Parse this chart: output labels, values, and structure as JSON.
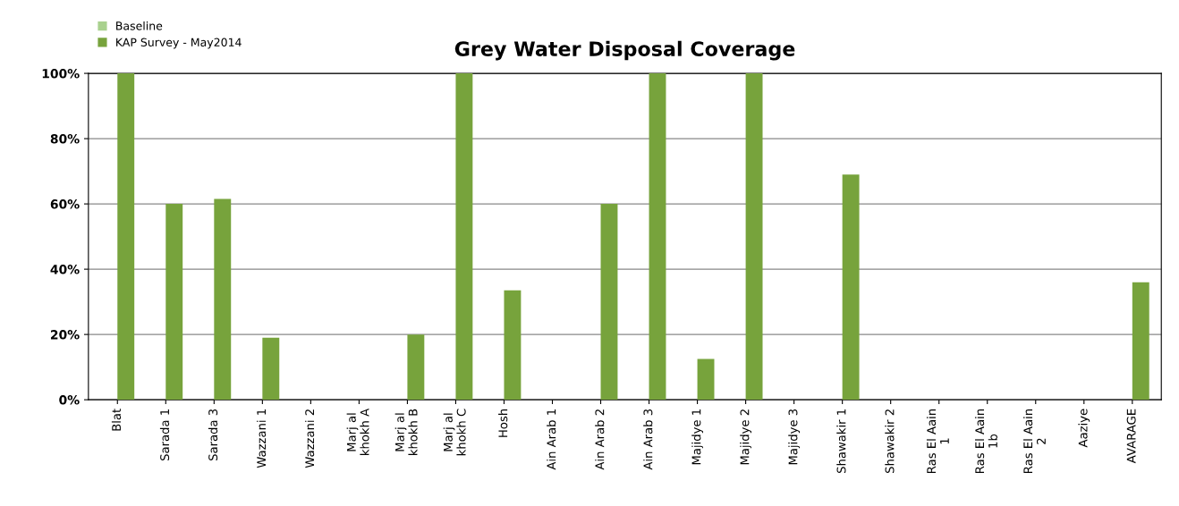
{
  "chart_data": {
    "type": "bar",
    "title": "Grey Water Disposal Coverage",
    "categories": [
      "Blat",
      "Sarada 1",
      "Sarada 3",
      "Wazzani 1",
      "Wazzani 2",
      "Marj al\nkhokh A",
      "Marj al\nkhokh B",
      "Marj al\nkhokh C",
      "Hosh",
      "Ain Arab 1",
      "Ain Arab 2",
      "Ain Arab 3",
      "Majidye 1",
      "Majidye 2",
      "Majidye 3",
      "Shawakir 1",
      "Shawakir 2",
      "Ras El Aain\n1",
      "Ras El Aain\n1b",
      "Ras El Aain\n2",
      "Aaziye",
      "AVARAGE"
    ],
    "series": [
      {
        "name": "Baseline",
        "color": "#a9d18e",
        "values": [
          null,
          null,
          null,
          null,
          null,
          null,
          null,
          null,
          null,
          null,
          null,
          null,
          null,
          null,
          null,
          null,
          null,
          null,
          null,
          null,
          null,
          null
        ]
      },
      {
        "name": "KAP Survey - May2014",
        "color": "#77a33c",
        "values": [
          100,
          60,
          61.5,
          19,
          0,
          0,
          20,
          100,
          33.5,
          0,
          60,
          100,
          12.5,
          100,
          0,
          69,
          0,
          0,
          0,
          0,
          0,
          36
        ]
      }
    ],
    "ylim": [
      0,
      100
    ],
    "yticks": [
      {
        "value": 0,
        "label": "0%"
      },
      {
        "value": 20,
        "label": "20%"
      },
      {
        "value": 40,
        "label": "40%"
      },
      {
        "value": 60,
        "label": "60%"
      },
      {
        "value": 80,
        "label": "80%"
      },
      {
        "value": 100,
        "label": "100%"
      }
    ],
    "grid": "y",
    "legend": "top left"
  }
}
